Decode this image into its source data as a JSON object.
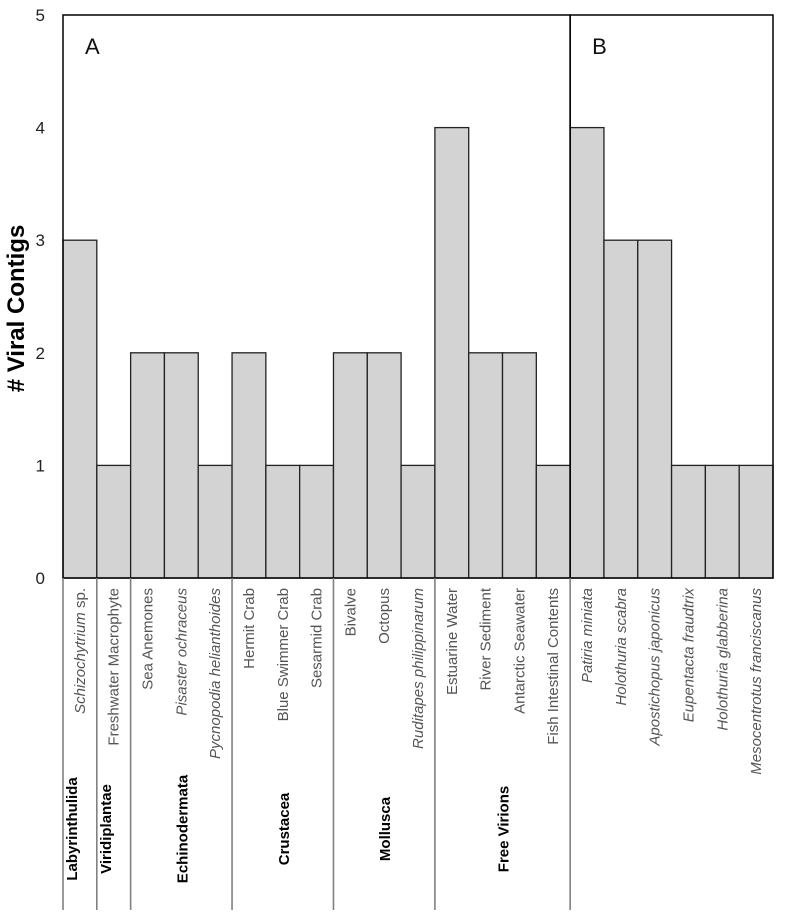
{
  "chart_data": {
    "type": "bar",
    "ylabel": "#    Viral Contigs",
    "ylim": [
      0,
      5
    ],
    "yticks": [
      "0",
      "1",
      "2",
      "3",
      "4",
      "5"
    ],
    "grid": false,
    "panels": [
      {
        "label": "A",
        "start": 0,
        "end": 15
      },
      {
        "label": "B",
        "start": 15,
        "end": 21
      }
    ],
    "categories": [
      {
        "name": "Schizochytrium",
        "suffix": " sp.",
        "italic": true
      },
      {
        "name": "Freshwater Macrophyte",
        "italic": false
      },
      {
        "name": "Sea Anemones",
        "italic": false
      },
      {
        "name": "Pisaster ochraceus",
        "italic": true
      },
      {
        "name": "Pycnopodia helianthoides",
        "italic": true
      },
      {
        "name": "Hermit Crab",
        "italic": false
      },
      {
        "name": "Blue Swimmer Crab",
        "italic": false
      },
      {
        "name": "Sesarmid Crab",
        "italic": false
      },
      {
        "name": "Bivalve",
        "italic": false
      },
      {
        "name": "Octopus",
        "italic": false
      },
      {
        "name": "Ruditapes philippinarum",
        "italic": true
      },
      {
        "name": "Estuarine Water",
        "italic": false
      },
      {
        "name": "River Sediment",
        "italic": false
      },
      {
        "name": "Antarctic Seawater",
        "italic": false
      },
      {
        "name": "Fish Intestinal Contents",
        "italic": false
      },
      {
        "name": "Patiria miniata",
        "italic": true
      },
      {
        "name": "Holothuria scabra",
        "italic": true
      },
      {
        "name": "Apostichopus japonicus",
        "italic": true
      },
      {
        "name": "Eupentacta fraudtrix",
        "italic": true
      },
      {
        "name": "Holothuria glabberina",
        "italic": true
      },
      {
        "name": "Mesocentrotus franciscanus",
        "italic": true
      }
    ],
    "values": [
      3,
      1,
      2,
      2,
      1,
      2,
      1,
      1,
      2,
      2,
      1,
      4,
      2,
      2,
      1,
      4,
      3,
      3,
      1,
      1,
      1
    ],
    "groups": [
      {
        "name": "Labyrinthulida",
        "start": 0,
        "end": 1
      },
      {
        "name": "Viridiplantae",
        "start": 1,
        "end": 2
      },
      {
        "name": "Echinodermata",
        "start": 2,
        "end": 5
      },
      {
        "name": "Crustacea",
        "start": 5,
        "end": 8
      },
      {
        "name": "Mollusca",
        "start": 8,
        "end": 11
      },
      {
        "name": "Free Virions",
        "start": 11,
        "end": 15
      }
    ],
    "colors": {
      "bar_fill": "#d3d3d3",
      "bar_stroke": "#222222",
      "divider": "#808080"
    }
  }
}
